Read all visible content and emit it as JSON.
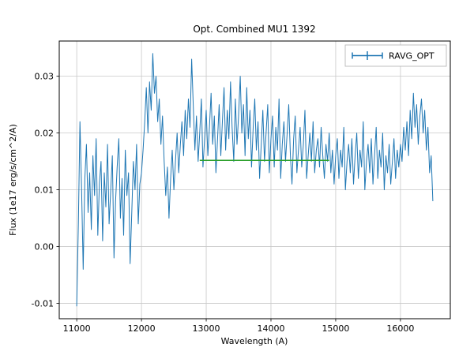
{
  "chart_data": {
    "type": "line",
    "title": "Opt. Combined MU1 1392",
    "xlabel": "Wavelength (A)",
    "ylabel": "Flux (1e17 erg/s/cm^2/A)",
    "grid": true,
    "legend_position": "upper right",
    "xlim": [
      10730,
      16770
    ],
    "ylim": [
      -0.0127,
      0.0362
    ],
    "xticks": [
      11000,
      12000,
      13000,
      14000,
      15000,
      16000
    ],
    "yticks": [
      -0.01,
      0.0,
      0.01,
      0.02,
      0.03
    ],
    "series": [
      {
        "name": "RAVG_OPT",
        "color": "#1f77b4",
        "marker": "errorbar-plus",
        "in_legend": true,
        "x_start": 11000,
        "x_step": 25,
        "values": [
          -0.0105,
          0.004,
          0.022,
          0.01,
          -0.004,
          0.012,
          0.018,
          0.006,
          0.013,
          0.003,
          0.016,
          0.009,
          0.019,
          0.002,
          0.011,
          0.015,
          0.001,
          0.013,
          0.007,
          0.018,
          0.004,
          0.01,
          0.016,
          -0.002,
          0.008,
          0.014,
          0.019,
          0.005,
          0.012,
          0.002,
          0.017,
          0.009,
          0.013,
          -0.003,
          0.006,
          0.015,
          0.01,
          0.018,
          0.004,
          0.011,
          0.013,
          0.017,
          0.022,
          0.028,
          0.02,
          0.029,
          0.024,
          0.034,
          0.027,
          0.03,
          0.022,
          0.026,
          0.018,
          0.023,
          0.015,
          0.009,
          0.014,
          0.005,
          0.012,
          0.017,
          0.01,
          0.015,
          0.02,
          0.013,
          0.018,
          0.022,
          0.016,
          0.024,
          0.019,
          0.026,
          0.021,
          0.033,
          0.025,
          0.017,
          0.023,
          0.015,
          0.02,
          0.026,
          0.014,
          0.019,
          0.024,
          0.016,
          0.021,
          0.027,
          0.018,
          0.023,
          0.013,
          0.019,
          0.025,
          0.016,
          0.022,
          0.028,
          0.017,
          0.024,
          0.019,
          0.029,
          0.021,
          0.015,
          0.026,
          0.018,
          0.023,
          0.03,
          0.02,
          0.025,
          0.016,
          0.028,
          0.019,
          0.024,
          0.014,
          0.021,
          0.026,
          0.017,
          0.022,
          0.012,
          0.018,
          0.024,
          0.015,
          0.02,
          0.025,
          0.013,
          0.019,
          0.023,
          0.014,
          0.021,
          0.017,
          0.026,
          0.012,
          0.018,
          0.022,
          0.015,
          0.02,
          0.025,
          0.016,
          0.011,
          0.019,
          0.023,
          0.013,
          0.017,
          0.021,
          0.014,
          0.018,
          0.024,
          0.012,
          0.016,
          0.02,
          0.015,
          0.022,
          0.013,
          0.017,
          0.019,
          0.014,
          0.021,
          0.016,
          0.012,
          0.018,
          0.015,
          0.02,
          0.013,
          0.017,
          0.011,
          0.016,
          0.019,
          0.012,
          0.017,
          0.014,
          0.021,
          0.01,
          0.015,
          0.018,
          0.013,
          0.019,
          0.011,
          0.016,
          0.02,
          0.012,
          0.017,
          0.014,
          0.022,
          0.01,
          0.015,
          0.018,
          0.013,
          0.019,
          0.011,
          0.016,
          0.021,
          0.012,
          0.017,
          0.014,
          0.02,
          0.01,
          0.016,
          0.013,
          0.018,
          0.011,
          0.015,
          0.019,
          0.012,
          0.017,
          0.014,
          0.018,
          0.015,
          0.021,
          0.017,
          0.022,
          0.016,
          0.024,
          0.019,
          0.027,
          0.021,
          0.025,
          0.018,
          0.023,
          0.026,
          0.02,
          0.024,
          0.017,
          0.021,
          0.013,
          0.016,
          0.008
        ]
      },
      {
        "name": "smoothed-baseline",
        "color": "#2ca02c",
        "in_legend": false,
        "x": [
          12900,
          14900
        ],
        "y": [
          0.0152,
          0.0152
        ]
      }
    ]
  }
}
